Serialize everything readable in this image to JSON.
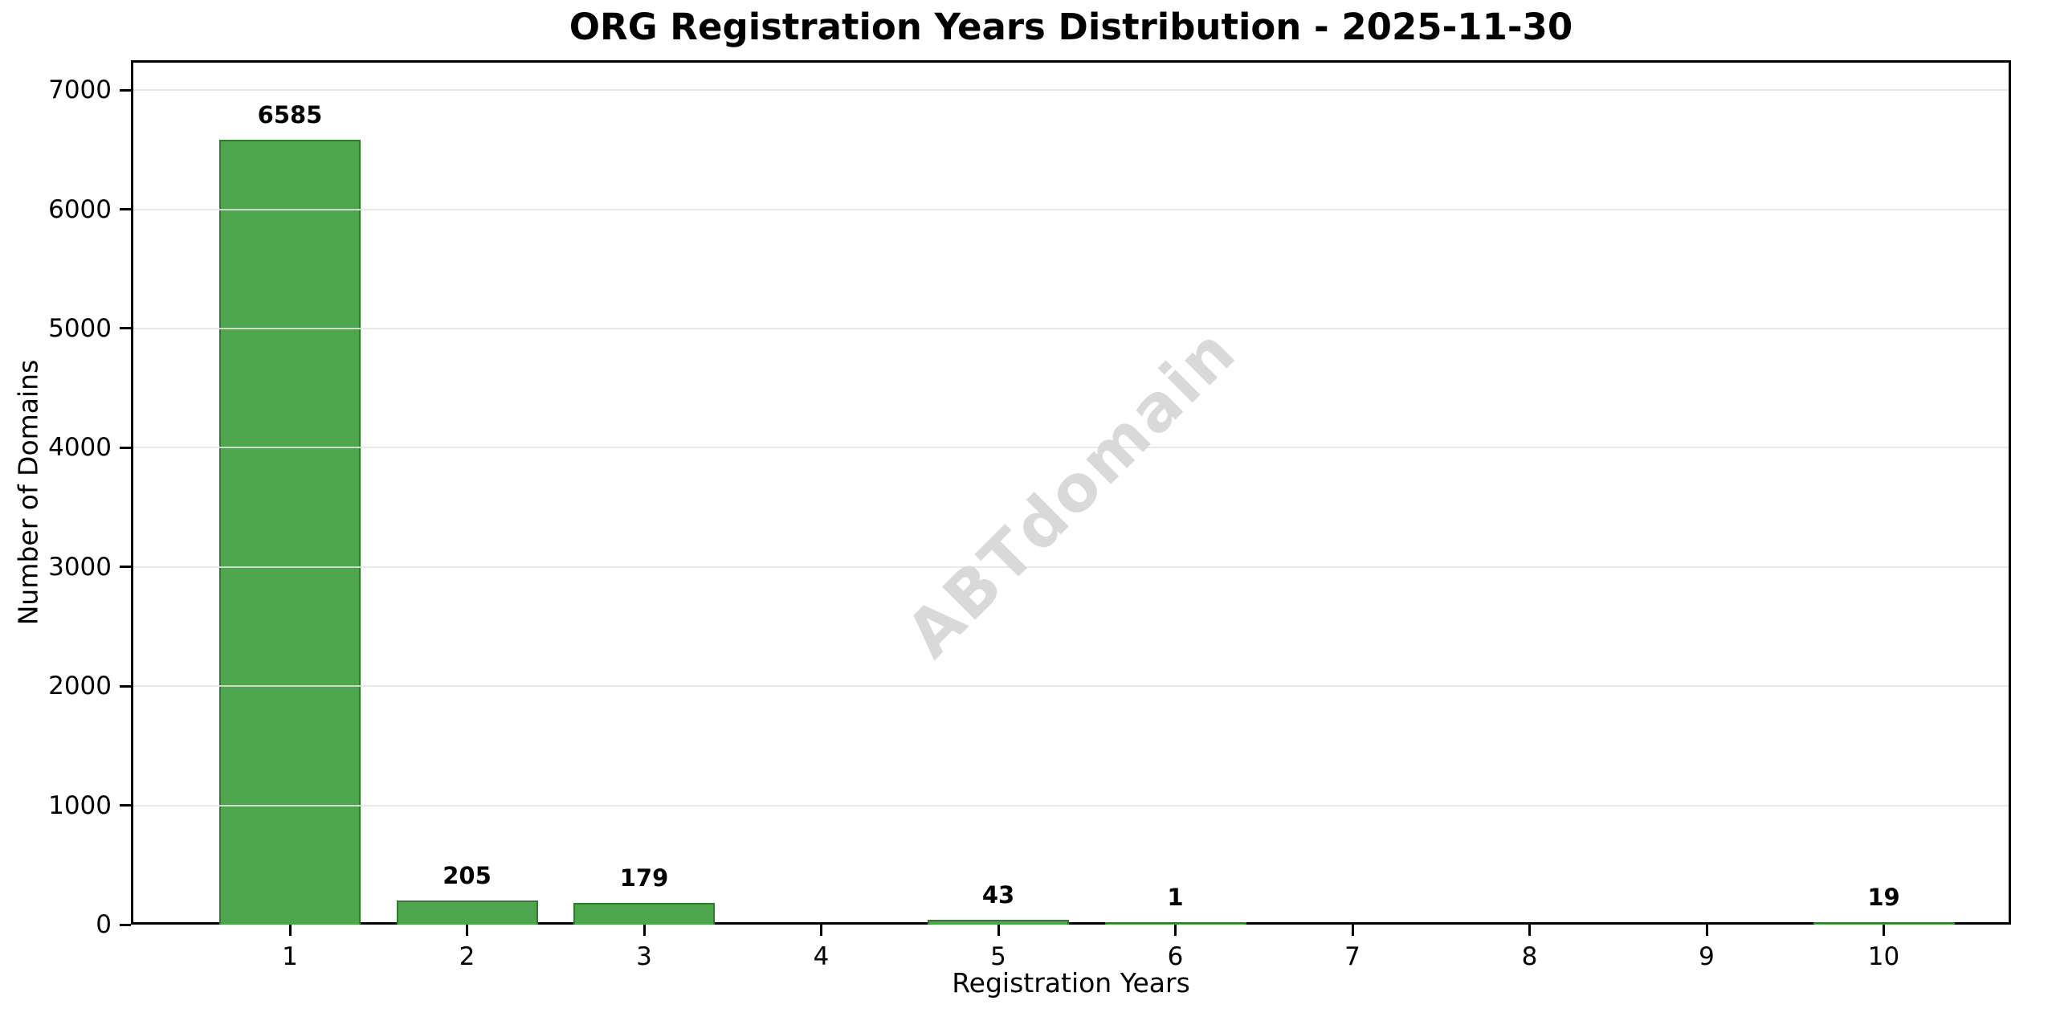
{
  "chart_data": {
    "type": "bar",
    "title": "ORG Registration Years Distribution - 2025-11-30",
    "xlabel": "Registration Years",
    "ylabel": "Number of Domains",
    "categories": [
      "1",
      "2",
      "3",
      "4",
      "5",
      "6",
      "7",
      "8",
      "9",
      "10"
    ],
    "values": [
      6585,
      205,
      179,
      0,
      43,
      1,
      0,
      0,
      0,
      19
    ],
    "bar_labels": [
      "6585",
      "205",
      "179",
      "",
      "43",
      "1",
      "",
      "",
      "",
      "19"
    ],
    "yticks": [
      0,
      1000,
      2000,
      3000,
      4000,
      5000,
      6000,
      7000
    ],
    "ylim": [
      0,
      7250
    ],
    "grid": "horizontal-over-bars",
    "legend": "none",
    "watermark": "ABTdomain",
    "colors": {
      "bar_fill": "#4da64d",
      "bar_edge": "#2b7e2c",
      "grid_line": "rgba(228,228,228,0.85)",
      "watermark_gray": "#d9d9d9",
      "axis_black": "#000000",
      "background": "#ffffff"
    }
  }
}
